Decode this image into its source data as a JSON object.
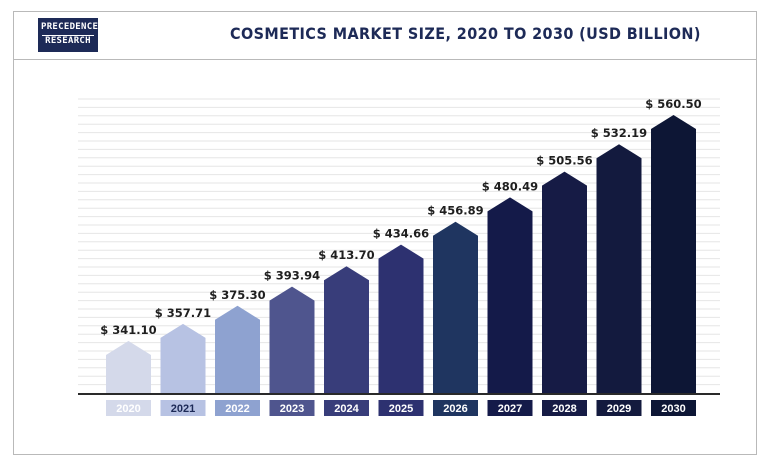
{
  "brand": {
    "line1": "PRECEDENCE",
    "line2": "RESEARCH"
  },
  "chart_data": {
    "type": "bar",
    "title": "COSMETICS MARKET SIZE, 2020 TO 2030 (USD BILLION)",
    "categories": [
      "2020",
      "2021",
      "2022",
      "2023",
      "2024",
      "2025",
      "2026",
      "2027",
      "2028",
      "2029",
      "2030"
    ],
    "values": [
      341.1,
      357.71,
      375.3,
      393.94,
      413.7,
      434.66,
      456.89,
      480.49,
      505.56,
      532.19,
      560.5
    ],
    "value_labels": [
      "$ 341.10",
      "$ 357.71",
      "$ 375.30",
      "$ 393.94",
      "$ 413.70",
      "$ 434.66",
      "$ 456.89",
      "$ 480.49",
      "$ 505.56",
      "$ 532.19",
      "$ 560.50"
    ],
    "colors": [
      "#d4d9ea",
      "#b7c2e3",
      "#8ea2d0",
      "#4f558e",
      "#383d7a",
      "#2d3170",
      "#1f3560",
      "#141a49",
      "#161b45",
      "#131a3e",
      "#0d1635"
    ],
    "year_label_colors": [
      "#ffffff",
      "#1d2a57",
      "#ffffff",
      "#ffffff",
      "#ffffff",
      "#ffffff",
      "#ffffff",
      "#ffffff",
      "#ffffff",
      "#ffffff",
      "#ffffff"
    ],
    "grid": true,
    "bar_shape": "pentagon"
  }
}
